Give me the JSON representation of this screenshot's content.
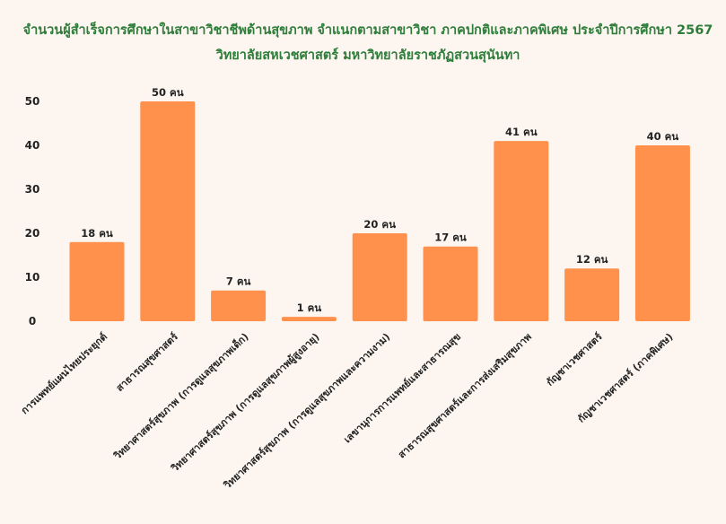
{
  "chart_data": {
    "type": "bar",
    "title": "จำนวนผู้สำเร็จการศึกษาในสาขาวิชาชีพด้านสุขภาพ จำแนกตามสาขาวิชา ภาคปกติและภาคพิเศษ ประจำปีการศึกษา 2567",
    "subtitle": "วิทยาลัยสหเวชศาสตร์ มหาวิทยาลัยราชภัฏสวนสุนันทา",
    "xlabel": "",
    "ylabel": "",
    "categories": [
      "การแพทย์แผนไทยประยุกต์",
      "สาธารณสุขศาสตร์",
      "วิทยาศาสตร์สุขภาพ (การดูแลสุขภาพเด็ก)",
      "วิทยาศาสตร์สุขภาพ (การดูแลสุขภาพผู้สูงอายุ)",
      "วิทยาศาสตร์สุขภาพ (การดูแลสุขภาพและความงาม)",
      "เลขานุการการแพทย์และสาธารณสุข",
      "สาธารณสุขศาสตร์และการส่งเสริมสุขภาพ",
      "กัญชาเวชศาสตร์",
      "กัญชาเวชศาสตร์ (ภาคพิเศษ)"
    ],
    "values": [
      18,
      50,
      7,
      1,
      20,
      17,
      41,
      12,
      40
    ],
    "data_labels": [
      "18 คน",
      "50 คน",
      "7 คน",
      "1 คน",
      "20 คน",
      "17 คน",
      "41 คน",
      "12 คน",
      "40 คน"
    ],
    "yticks": [
      "0",
      "10",
      "20",
      "30",
      "40",
      "50"
    ],
    "ylim": [
      0,
      50
    ],
    "grid": false,
    "legend": "none",
    "bar_color": "#ff914d",
    "title_color": "#2e7d3a"
  }
}
